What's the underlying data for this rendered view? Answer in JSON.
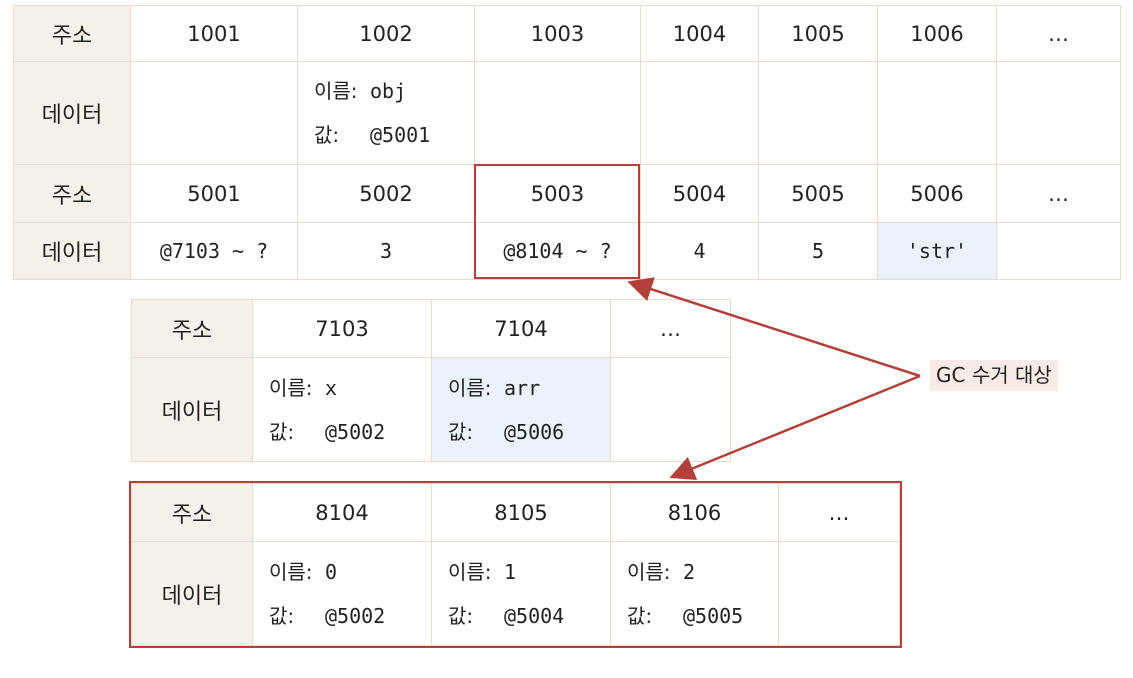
{
  "labels": {
    "address": "주소",
    "data": "데이터",
    "name": "이름:",
    "value": "값:"
  },
  "table1": {
    "addresses1": [
      "1001",
      "1002",
      "1003",
      "1004",
      "1005",
      "1006",
      "…"
    ],
    "data1": {
      "name": "obj",
      "value": "@5001"
    },
    "addresses2": [
      "5001",
      "5002",
      "5003",
      "5004",
      "5005",
      "5006",
      "…"
    ],
    "data2": [
      "@7103 ~ ?",
      "3",
      "@8104 ~ ?",
      "4",
      "5",
      "'str'",
      ""
    ]
  },
  "table2": {
    "addresses": [
      "7103",
      "7104",
      "…"
    ],
    "cells": [
      {
        "name": "x",
        "value": "@5002"
      },
      {
        "name": "arr",
        "value": "@5006"
      }
    ]
  },
  "table3": {
    "addresses": [
      "8104",
      "8105",
      "8106",
      "…"
    ],
    "cells": [
      {
        "name": "0",
        "value": "@5002"
      },
      {
        "name": "1",
        "value": "@5004"
      },
      {
        "name": "2",
        "value": "@5005"
      }
    ]
  },
  "annotation": "GC 수거 대상",
  "colors": {
    "accent": "#b3403a",
    "header_bg": "#f6f0ea",
    "highlight": "#eaf3fb",
    "border": "#ead9cb"
  }
}
